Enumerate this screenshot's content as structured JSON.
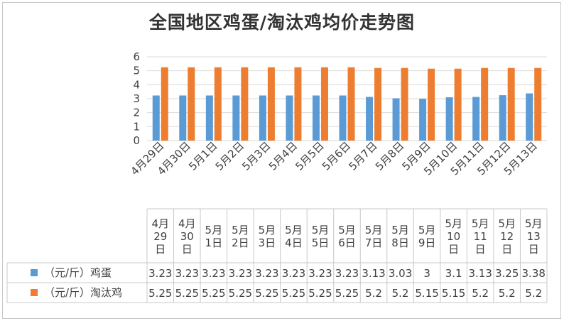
{
  "chart_data": {
    "type": "bar",
    "title": "全国地区鸡蛋/淘汰鸡均价走势图",
    "categories": [
      "4月29日",
      "4月30日",
      "5月1日",
      "5月2日",
      "5月3日",
      "5月4日",
      "5月5日",
      "5月6日",
      "5月7日",
      "5月8日",
      "5月9日",
      "5月10日",
      "5月11日",
      "5月12日",
      "5月13日"
    ],
    "table_categories": [
      [
        "4月",
        "29",
        "日"
      ],
      [
        "4月",
        "30",
        "日"
      ],
      [
        "5月",
        "1日"
      ],
      [
        "5月",
        "2日"
      ],
      [
        "5月",
        "3日"
      ],
      [
        "5月",
        "4日"
      ],
      [
        "5月",
        "5日"
      ],
      [
        "5月",
        "6日"
      ],
      [
        "5月",
        "7日"
      ],
      [
        "5月",
        "8日"
      ],
      [
        "5月",
        "9日"
      ],
      [
        "5月",
        "10",
        "日"
      ],
      [
        "5月",
        "11",
        "日"
      ],
      [
        "5月",
        "12",
        "日"
      ],
      [
        "5月",
        "13",
        "日"
      ]
    ],
    "series": [
      {
        "name": "（元/斤）鸡蛋",
        "color": "#5b9bd5",
        "values": [
          3.23,
          3.23,
          3.23,
          3.23,
          3.23,
          3.23,
          3.23,
          3.23,
          3.13,
          3.03,
          3,
          3.1,
          3.13,
          3.25,
          3.38
        ],
        "labels": [
          "3.23",
          "3.23",
          "3.23",
          "3.23",
          "3.23",
          "3.23",
          "3.23",
          "3.23",
          "3.13",
          "3.03",
          "3",
          "3.1",
          "3.13",
          "3.25",
          "3.38"
        ]
      },
      {
        "name": "（元/斤）淘汰鸡",
        "color": "#ed7d31",
        "values": [
          5.25,
          5.25,
          5.25,
          5.25,
          5.25,
          5.25,
          5.25,
          5.25,
          5.2,
          5.2,
          5.15,
          5.15,
          5.2,
          5.2,
          5.2
        ],
        "labels": [
          "5.25",
          "5.25",
          "5.25",
          "5.25",
          "5.25",
          "5.25",
          "5.25",
          "5.25",
          "5.2",
          "5.2",
          "5.15",
          "5.15",
          "5.2",
          "5.2",
          "5.2"
        ]
      }
    ],
    "ylim": [
      0,
      6
    ],
    "yticks": [
      "0",
      "1",
      "2",
      "3",
      "4",
      "5",
      "6"
    ],
    "grid": true,
    "legend": "data-table"
  }
}
